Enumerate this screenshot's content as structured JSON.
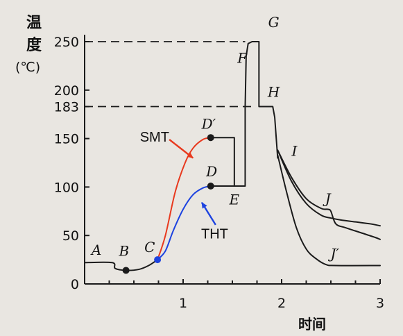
{
  "chart_data": {
    "type": "line",
    "ylabel_chars": [
      "温",
      "度"
    ],
    "ylabel_unit": "(℃)",
    "xlabel": "时间",
    "xlim": [
      0,
      3
    ],
    "ylim": [
      0,
      250
    ],
    "yticks": [
      0,
      50,
      100,
      150,
      183,
      200,
      250
    ],
    "xticks": [
      1,
      2,
      3
    ],
    "ytick_labels": [
      "0",
      "50",
      "100",
      "150",
      "183",
      "200",
      "250"
    ],
    "xtick_labels": [
      "1",
      "2",
      "3"
    ],
    "reference_lines": [
      {
        "y": 250,
        "x_from": 0,
        "x_to": 1.63,
        "style": "dashed"
      },
      {
        "y": 183,
        "x_from": 0,
        "x_to": 1.7,
        "style": "dashed"
      }
    ],
    "series": [
      {
        "key": "base",
        "color": "#1b1b1b",
        "points": [
          [
            0,
            22
          ],
          [
            0.28,
            22
          ],
          [
            0.31,
            16
          ],
          [
            0.42,
            14
          ],
          [
            0.55,
            15
          ],
          [
            0.65,
            19
          ],
          [
            0.74,
            25
          ]
        ]
      },
      {
        "key": "smt",
        "name": "SMT",
        "color": "#e8391e",
        "points": [
          [
            0.74,
            25
          ],
          [
            0.82,
            50
          ],
          [
            0.92,
            95
          ],
          [
            1.02,
            125
          ],
          [
            1.1,
            140
          ],
          [
            1.2,
            149
          ],
          [
            1.28,
            151
          ]
        ]
      },
      {
        "key": "tht",
        "name": "THT",
        "color": "#1d43e0",
        "points": [
          [
            0.74,
            25
          ],
          [
            0.82,
            34
          ],
          [
            0.9,
            55
          ],
          [
            1.0,
            77
          ],
          [
            1.1,
            92
          ],
          [
            1.2,
            99
          ],
          [
            1.28,
            101
          ]
        ]
      },
      {
        "key": "profile",
        "color": "#1b1b1b",
        "points": [
          [
            1.28,
            151
          ],
          [
            1.52,
            151
          ],
          [
            1.52,
            101
          ],
          [
            1.28,
            101
          ],
          [
            1.52,
            101
          ],
          [
            1.63,
            101
          ],
          [
            1.63,
            183
          ],
          [
            1.64,
            235
          ],
          [
            1.66,
            248
          ],
          [
            1.7,
            250
          ],
          [
            1.77,
            250
          ],
          [
            1.77,
            183
          ],
          [
            1.91,
            183
          ],
          [
            1.93,
            172
          ],
          [
            1.96,
            130
          ]
        ]
      },
      {
        "key": "cool-1",
        "color": "#1b1b1b",
        "points": [
          [
            1.96,
            138
          ],
          [
            2.1,
            106
          ],
          [
            2.25,
            83
          ],
          [
            2.4,
            71
          ],
          [
            2.5,
            68
          ],
          [
            2.6,
            66
          ],
          [
            2.75,
            64
          ],
          [
            2.9,
            62
          ],
          [
            3.0,
            60
          ]
        ]
      },
      {
        "key": "cool-2",
        "color": "#1b1b1b",
        "points": [
          [
            1.96,
            138
          ],
          [
            2.1,
            110
          ],
          [
            2.25,
            88
          ],
          [
            2.4,
            78
          ],
          [
            2.47,
            77
          ],
          [
            2.5,
            75
          ],
          [
            2.55,
            62
          ],
          [
            2.65,
            58
          ],
          [
            2.8,
            53
          ],
          [
            2.95,
            48
          ],
          [
            3.0,
            46
          ]
        ]
      },
      {
        "key": "cool-3",
        "color": "#1b1b1b",
        "points": [
          [
            1.96,
            133
          ],
          [
            2.05,
            95
          ],
          [
            2.15,
            58
          ],
          [
            2.25,
            36
          ],
          [
            2.35,
            26
          ],
          [
            2.45,
            20
          ],
          [
            2.55,
            19
          ],
          [
            3.0,
            19
          ]
        ]
      }
    ],
    "markers": [
      {
        "x": 0.42,
        "y": 14,
        "color": "#1b1b1b"
      },
      {
        "x": 0.74,
        "y": 25,
        "color": "#1d43e0"
      },
      {
        "x": 1.28,
        "y": 151,
        "color": "#1b1b1b"
      },
      {
        "x": 1.28,
        "y": 101,
        "color": "#1b1b1b"
      }
    ],
    "point_labels": [
      {
        "text": "A",
        "x": 0.12,
        "y": 30
      },
      {
        "text": "B",
        "x": 0.4,
        "y": 29
      },
      {
        "text": "C",
        "x": 0.66,
        "y": 33
      },
      {
        "text": "D′",
        "x": 1.26,
        "y": 160
      },
      {
        "text": "D",
        "x": 1.29,
        "y": 111
      },
      {
        "text": "E",
        "x": 1.52,
        "y": 82
      },
      {
        "text": "F",
        "x": 1.6,
        "y": 228
      },
      {
        "text": "G",
        "x": 1.92,
        "y": 265
      },
      {
        "text": "H",
        "x": 1.92,
        "y": 193
      },
      {
        "text": "I",
        "x": 2.13,
        "y": 132
      },
      {
        "text": "J",
        "x": 2.47,
        "y": 83
      },
      {
        "text": "J′",
        "x": 2.54,
        "y": 26
      }
    ],
    "annotations": [
      {
        "text": "SMT",
        "x": 0.71,
        "y": 147
      },
      {
        "text": "THT",
        "x": 1.32,
        "y": 47
      }
    ],
    "arrows": [
      {
        "color": "#e8391e",
        "from": [
          0.86,
          149
        ],
        "to": [
          1.1,
          130
        ]
      },
      {
        "color": "#1d43e0",
        "from": [
          1.33,
          61
        ],
        "to": [
          1.19,
          84
        ]
      }
    ]
  }
}
